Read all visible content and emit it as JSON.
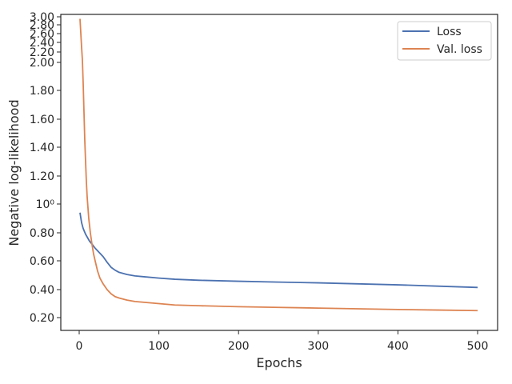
{
  "chart_data": {
    "type": "line",
    "xlabel": "Epochs",
    "ylabel": "Negative log-likelihood",
    "xlim": [
      -25,
      525
    ],
    "ylim": [
      0.11,
      3.03
    ],
    "x_ticks": [
      "0",
      "100",
      "200",
      "300",
      "400",
      "500"
    ],
    "y_tick_labels": [
      {
        "value": 0.2,
        "label": "0.20"
      },
      {
        "value": 0.4,
        "label": "0.40"
      },
      {
        "value": 0.6,
        "label": "0.60"
      },
      {
        "value": 0.8,
        "label": "0.80"
      },
      {
        "value": 1.0,
        "label": "10⁰"
      },
      {
        "value": 1.2,
        "label": "1.20"
      },
      {
        "value": 1.4,
        "label": "1.40"
      },
      {
        "value": 1.6,
        "label": "1.60"
      },
      {
        "value": 1.8,
        "label": "1.80"
      },
      {
        "value": 2.0,
        "label": "2.00"
      },
      {
        "value": 2.2,
        "label": "2.20"
      },
      {
        "value": 2.4,
        "label": "2.40"
      },
      {
        "value": 2.6,
        "label": "2.60"
      },
      {
        "value": 2.8,
        "label": "2.80"
      },
      {
        "value": 3.0,
        "label": "3.00"
      }
    ],
    "y_scale_note": "mixed tick formatting (10⁰ at 1.0); upper ticks compressed",
    "grid": false,
    "legend": "top-right",
    "series": [
      {
        "name": "Loss",
        "color": "#4c72b0",
        "x": [
          1,
          3,
          5,
          8,
          10,
          13,
          16,
          20,
          25,
          30,
          35,
          40,
          45,
          50,
          60,
          70,
          80,
          100,
          120,
          150,
          200,
          250,
          300,
          350,
          400,
          450,
          500
        ],
        "y": [
          0.94,
          0.87,
          0.83,
          0.79,
          0.77,
          0.74,
          0.72,
          0.69,
          0.66,
          0.63,
          0.59,
          0.555,
          0.535,
          0.52,
          0.505,
          0.495,
          0.49,
          0.48,
          0.472,
          0.465,
          0.458,
          0.452,
          0.447,
          0.44,
          0.433,
          0.424,
          0.415
        ]
      },
      {
        "name": "Val. loss",
        "color": "#dd8452",
        "x": [
          1,
          3,
          4,
          5,
          6,
          7,
          8,
          9,
          10,
          12,
          14,
          16,
          18,
          20,
          23,
          26,
          30,
          35,
          40,
          45,
          50,
          60,
          70,
          80,
          100,
          120,
          150,
          200,
          250,
          300,
          350,
          400,
          450,
          500
        ],
        "y": [
          2.95,
          2.3,
          2.05,
          1.85,
          1.65,
          1.45,
          1.3,
          1.16,
          1.05,
          0.9,
          0.8,
          0.72,
          0.65,
          0.6,
          0.53,
          0.48,
          0.44,
          0.4,
          0.37,
          0.35,
          0.34,
          0.325,
          0.315,
          0.31,
          0.3,
          0.29,
          0.285,
          0.278,
          0.273,
          0.268,
          0.263,
          0.258,
          0.254,
          0.25
        ]
      }
    ]
  }
}
